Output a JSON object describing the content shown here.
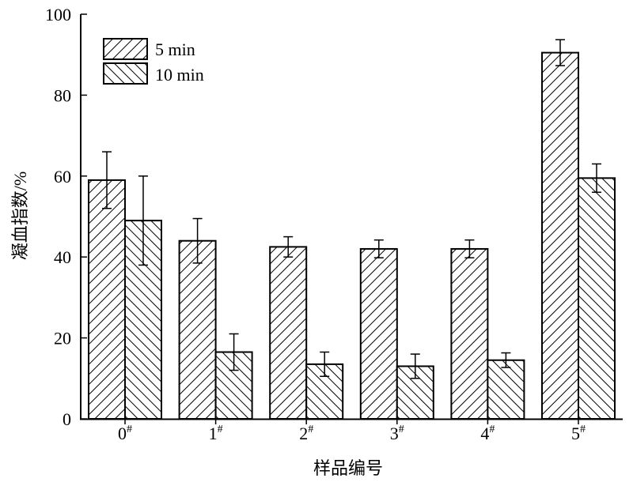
{
  "chart_data": {
    "type": "bar",
    "title": "",
    "xlabel": "样品编号",
    "ylabel": "凝血指数/%",
    "categories": [
      "0",
      "1",
      "2",
      "3",
      "4",
      "5"
    ],
    "category_suffix": "#",
    "ylim": [
      0,
      100
    ],
    "yticks": [
      "0",
      "20",
      "40",
      "60",
      "80",
      "100"
    ],
    "grid": false,
    "legend_position": "top-left",
    "series": [
      {
        "name": "5 min",
        "hatch": "forward-diagonal",
        "values": [
          59,
          44,
          42.5,
          42,
          42,
          90.5
        ],
        "errors": [
          7,
          5.5,
          2.5,
          2.2,
          2.2,
          3.2
        ]
      },
      {
        "name": "10 min",
        "hatch": "back-diagonal",
        "values": [
          49,
          16.5,
          13.5,
          13,
          14.5,
          59.5
        ],
        "errors": [
          11,
          4.5,
          3,
          3,
          1.8,
          3.5
        ]
      }
    ],
    "colors": {
      "bar_fill": "#ffffff",
      "bar_stroke": "#000000",
      "axis": "#000000"
    }
  }
}
